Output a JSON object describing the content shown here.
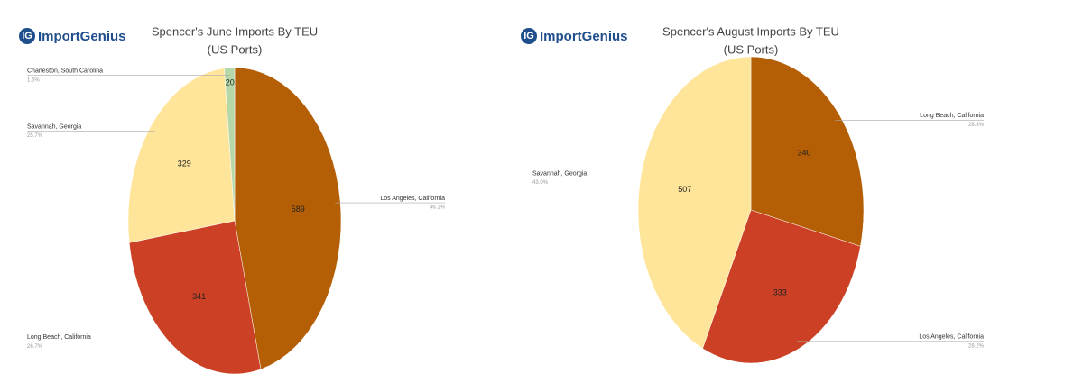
{
  "chart_data": [
    {
      "type": "pie",
      "logo_icon": "IG",
      "logo": "ImportGenius",
      "title": "Spencer's June Imports By TEU",
      "subtitle": "(US Ports)",
      "categories": [
        "Los Angeles, California",
        "Long Beach, California",
        "Savannah, Georgia",
        "Charleston, South Carolina"
      ],
      "values": [
        589,
        341,
        329,
        20
      ],
      "percent_labels": [
        "46.1%",
        "26.7%",
        "25.7%",
        "1.6%"
      ],
      "colors": [
        "#b45f06",
        "#cc4125",
        "#ffe599",
        "#b6d7a8"
      ]
    },
    {
      "type": "pie",
      "logo_icon": "IG",
      "logo": "ImportGenius",
      "title": "Spencer's August Imports By TEU",
      "subtitle": "(US Ports)",
      "categories": [
        "Long Beach, California",
        "Los Angeles, California",
        "Savannah, Georgia"
      ],
      "values": [
        340,
        333,
        507
      ],
      "percent_labels": [
        "28.8%",
        "28.2%",
        "43.0%"
      ],
      "colors": [
        "#b45f06",
        "#cc4125",
        "#ffe599"
      ]
    }
  ]
}
